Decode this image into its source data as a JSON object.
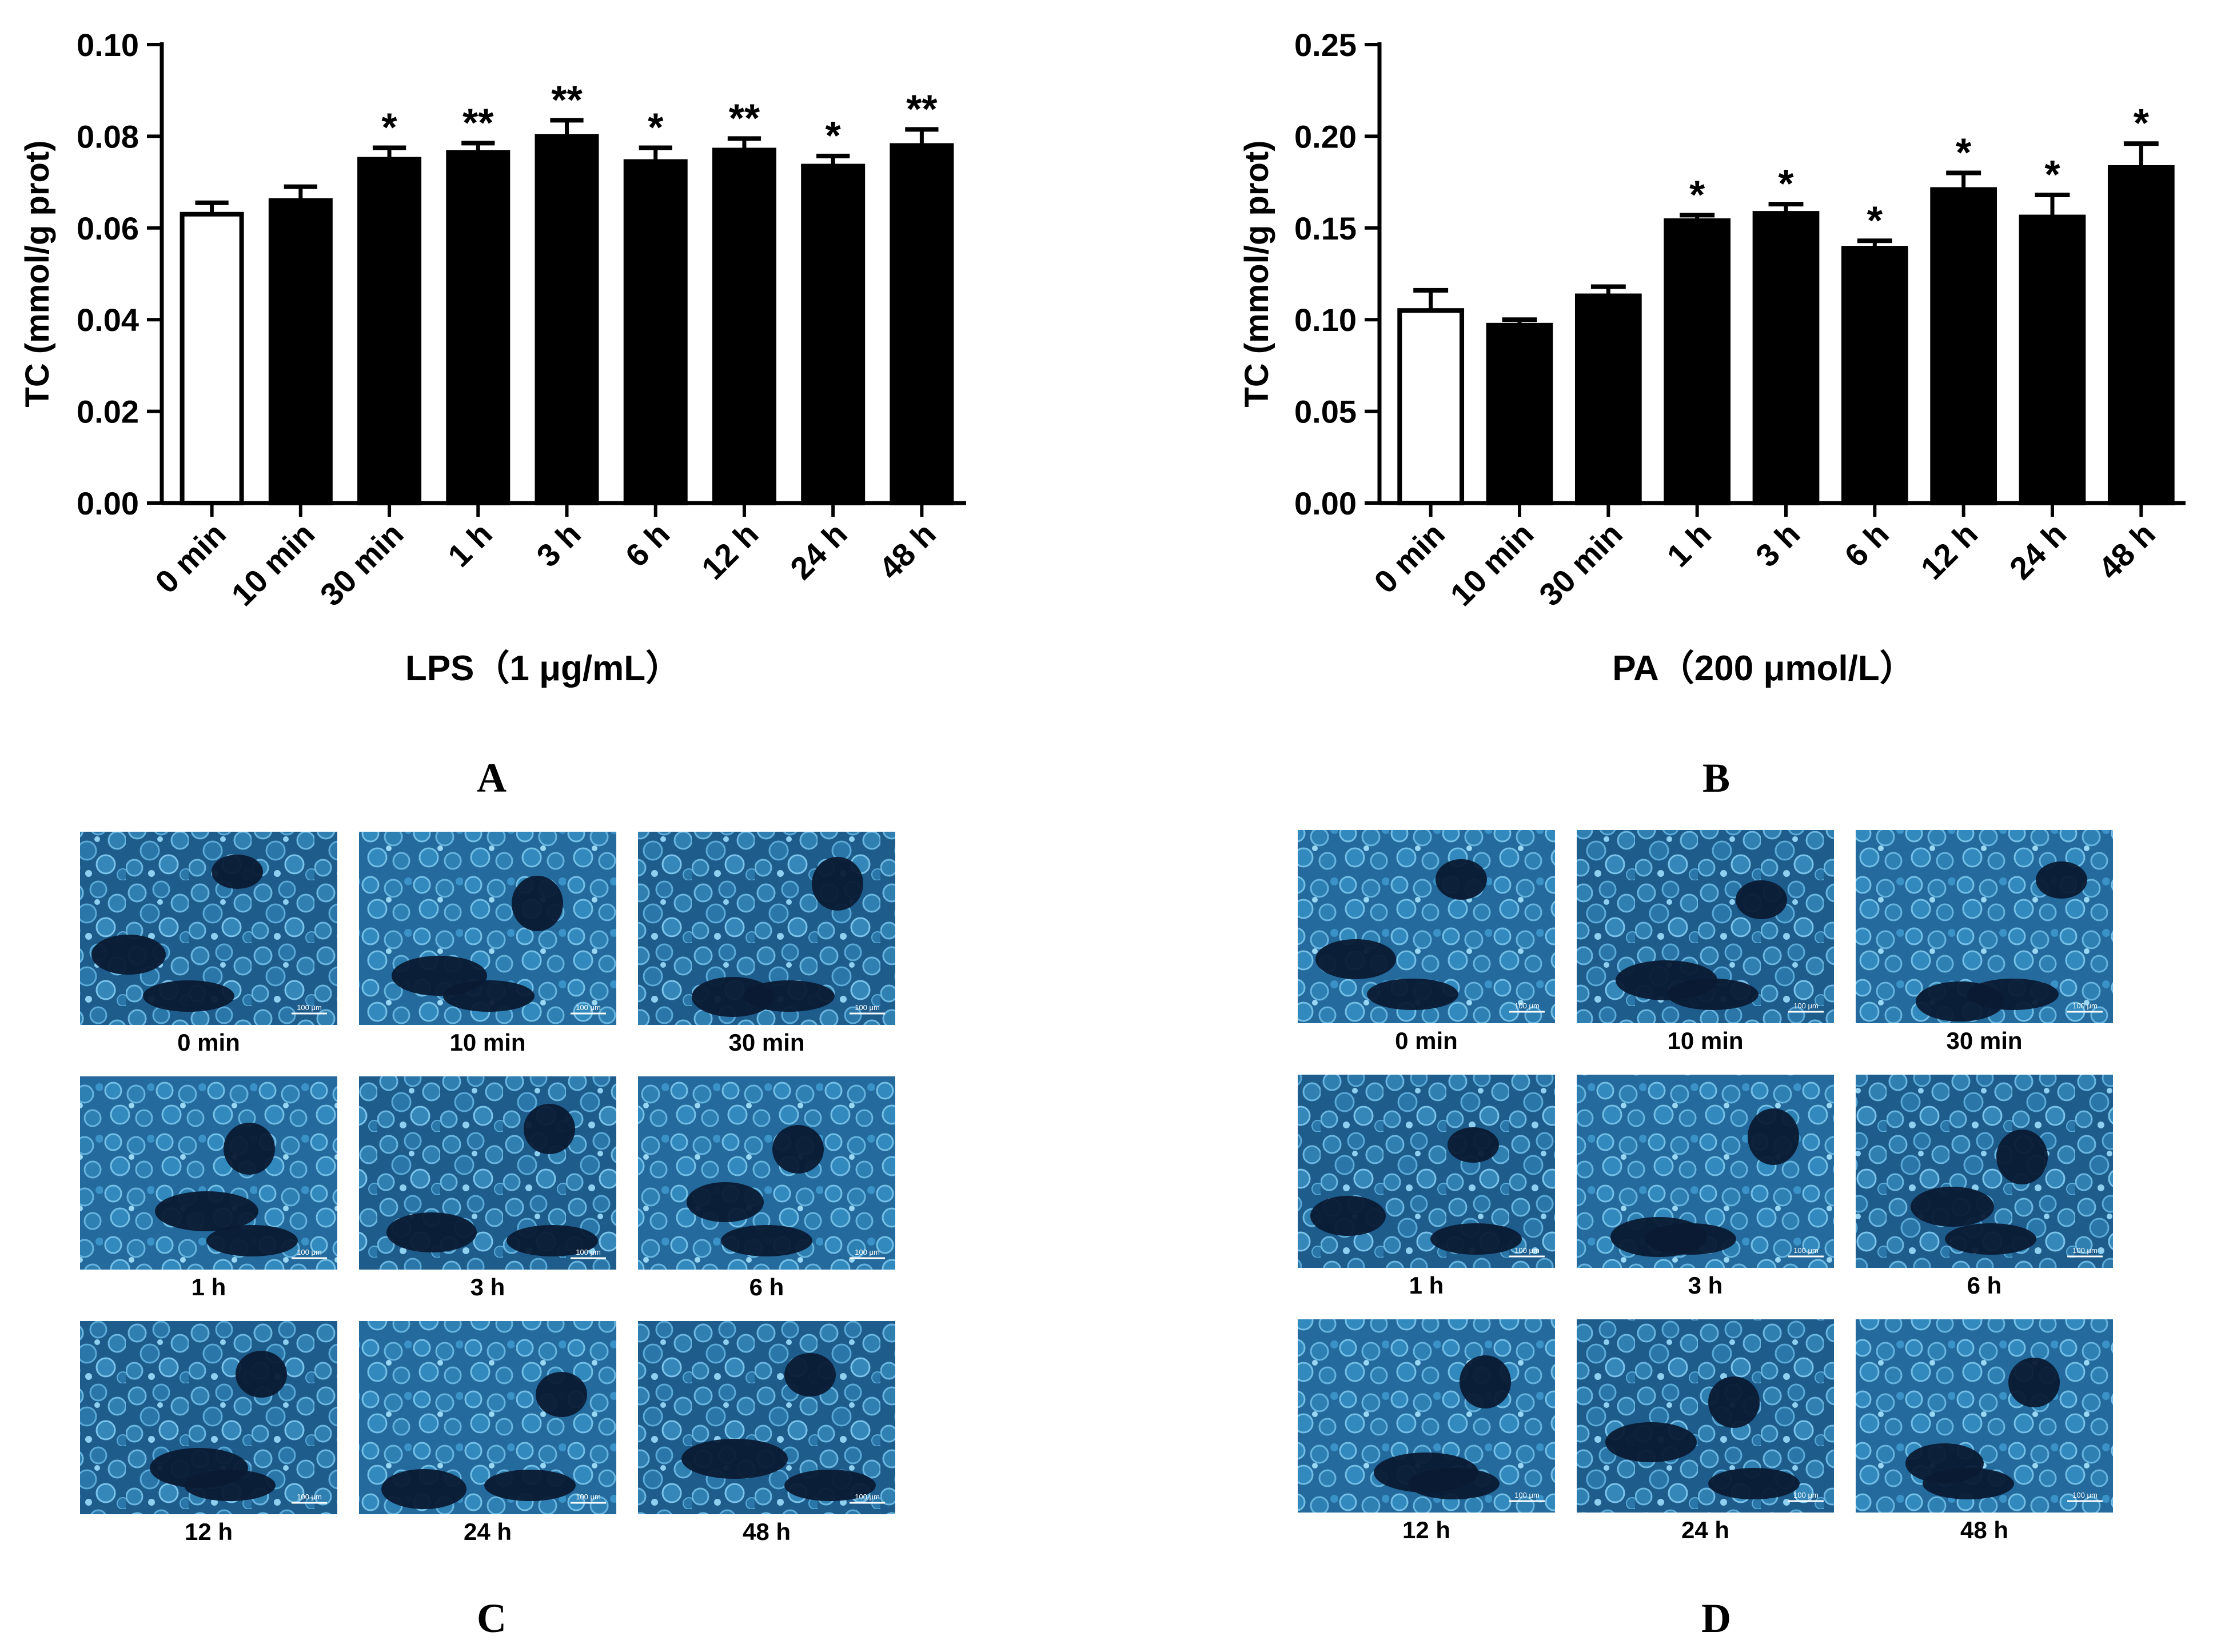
{
  "chart_data": [
    {
      "panel": "A",
      "type": "bar",
      "title": "",
      "xlabel": "LPS（1 μg/mL）",
      "ylabel": "TC (mmol/g prot)",
      "ylim": [
        0,
        0.1
      ],
      "yticks": [
        "0.00",
        "0.02",
        "0.04",
        "0.06",
        "0.08",
        "0.10"
      ],
      "categories": [
        "0 min",
        "10 min",
        "30 min",
        "1 h",
        "3 h",
        "6 h",
        "12 h",
        "24 h",
        "48 h"
      ],
      "values": [
        0.063,
        0.066,
        0.075,
        0.0765,
        0.08,
        0.0745,
        0.077,
        0.0735,
        0.078
      ],
      "errors": [
        0.0025,
        0.003,
        0.0025,
        0.002,
        0.0035,
        0.003,
        0.0025,
        0.0022,
        0.0035
      ],
      "significance": [
        "",
        "",
        "*",
        "**",
        "**",
        "*",
        "**",
        "*",
        "**"
      ],
      "control_index": 0
    },
    {
      "panel": "B",
      "type": "bar",
      "title": "",
      "xlabel": "PA（200 μmol/L）",
      "ylabel": "TC (mmol/g prot)",
      "ylim": [
        0,
        0.25
      ],
      "yticks": [
        "0.00",
        "0.05",
        "0.10",
        "0.15",
        "0.20",
        "0.25"
      ],
      "categories": [
        "0 min",
        "10 min",
        "30 min",
        "1 h",
        "3 h",
        "6 h",
        "12 h",
        "24 h",
        "48 h"
      ],
      "values": [
        0.105,
        0.097,
        0.113,
        0.154,
        0.158,
        0.139,
        0.171,
        0.156,
        0.183
      ],
      "errors": [
        0.011,
        0.003,
        0.005,
        0.003,
        0.005,
        0.004,
        0.009,
        0.012,
        0.013
      ],
      "significance": [
        "",
        "",
        "",
        "*",
        "*",
        "*",
        "*",
        "*",
        "*"
      ],
      "control_index": 0
    }
  ],
  "panel_labels": [
    "A",
    "B",
    "C",
    "D"
  ],
  "micrographs": {
    "C": {
      "labels": [
        "0 min",
        "10 min",
        "30 min",
        "1 h",
        "3 h",
        "6 h",
        "12 h",
        "24 h",
        "48 h"
      ],
      "scale_bar_text": "100 μm"
    },
    "D": {
      "labels": [
        "0 min",
        "10 min",
        "30 min",
        "1 h",
        "3 h",
        "6 h",
        "12 h",
        "24 h",
        "48 h"
      ],
      "scale_bar_text": "100 μm"
    }
  },
  "colors": {
    "bar_fill": "#000000",
    "control_fill": "#ffffff",
    "image_background": "#0b1a33",
    "cell_tint": "#2f7fb0",
    "cell_light": "#5aa9d6"
  }
}
